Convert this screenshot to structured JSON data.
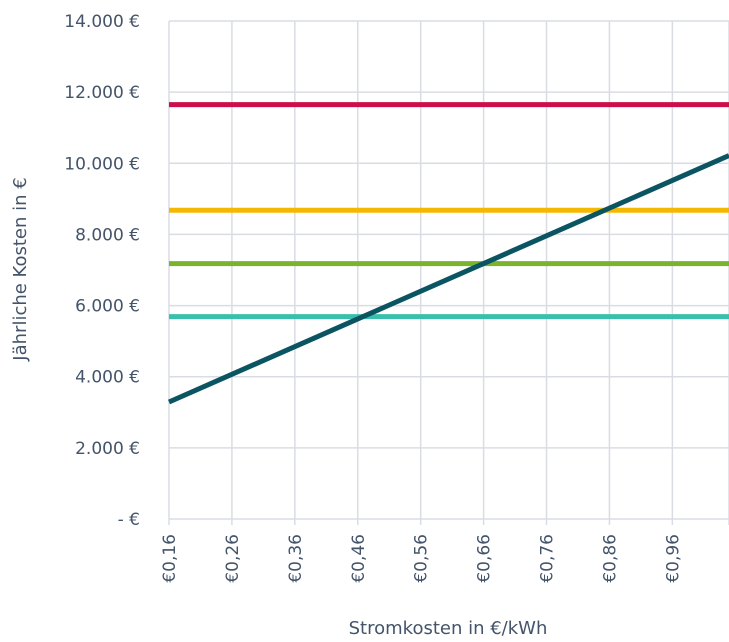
{
  "chart_data": {
    "type": "line",
    "xlabel": "Stromkosten in €/kWh",
    "ylabel": "Jährliche Kosten in €",
    "xlim": [
      0.16,
      1.05
    ],
    "ylim": [
      0,
      14000
    ],
    "x_ticks": [
      0.16,
      0.26,
      0.36,
      0.46,
      0.56,
      0.66,
      0.76,
      0.86,
      0.96
    ],
    "x_tick_labels": [
      "€0,16",
      "€0,26",
      "€0,36",
      "€0,46",
      "€0,56",
      "€0,66",
      "€0,76",
      "€0,86",
      "€0,96"
    ],
    "y_ticks": [
      0,
      2000,
      4000,
      6000,
      8000,
      10000,
      12000,
      14000
    ],
    "y_tick_labels": [
      "-   €",
      "2.000 €",
      "4.000 €",
      "6.000 €",
      "8.000 €",
      "10.000 €",
      "12.000 €",
      "14.000 €"
    ],
    "grid": true,
    "legend": "none",
    "series": [
      {
        "color": "#cc0e4a",
        "x": [
          0.16,
          1.05
        ],
        "y": [
          11650,
          11650
        ]
      },
      {
        "color": "#f5b800",
        "x": [
          0.16,
          1.05
        ],
        "y": [
          8680,
          8680
        ]
      },
      {
        "color": "#7ab32e",
        "x": [
          0.16,
          1.05
        ],
        "y": [
          7180,
          7180
        ]
      },
      {
        "color": "#3bbfad",
        "x": [
          0.16,
          1.05
        ],
        "y": [
          5690,
          5690
        ]
      },
      {
        "color": "#0b5563",
        "x": [
          0.16,
          1.05
        ],
        "y": [
          3290,
          10220
        ]
      }
    ]
  }
}
